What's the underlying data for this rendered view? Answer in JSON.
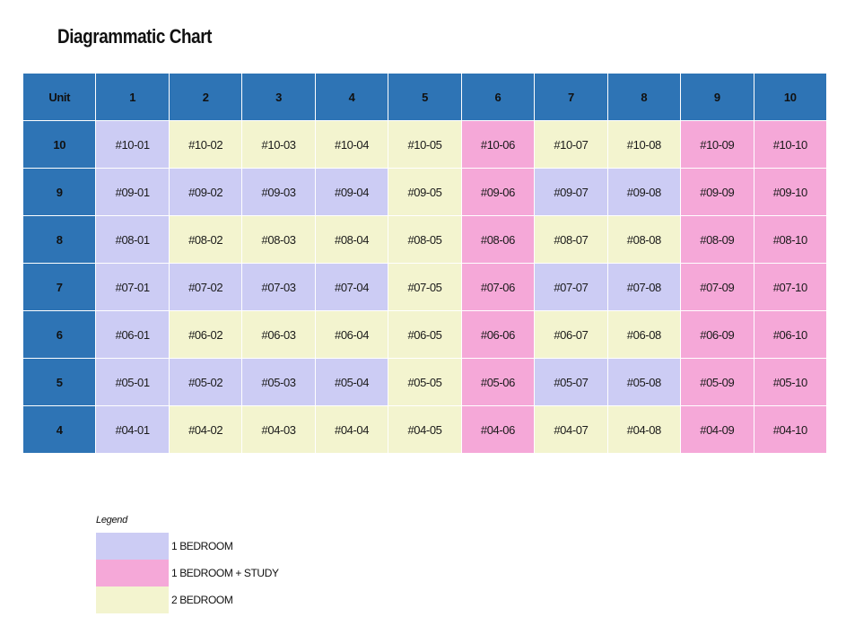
{
  "title": "Diagrammatic Chart",
  "colors": {
    "header": "#2e74b5",
    "1_bedroom": "#ccccf4",
    "1_bedroom_study": "#f5a8d8",
    "2_bedroom": "#f3f4cf"
  },
  "table": {
    "corner_label": "Unit",
    "columns": [
      "1",
      "2",
      "3",
      "4",
      "5",
      "6",
      "7",
      "8",
      "9",
      "10"
    ],
    "rows": [
      {
        "floor": "10",
        "cells": [
          {
            "label": "#10-01",
            "type": "1_bedroom"
          },
          {
            "label": "#10-02",
            "type": "2_bedroom"
          },
          {
            "label": "#10-03",
            "type": "2_bedroom"
          },
          {
            "label": "#10-04",
            "type": "2_bedroom"
          },
          {
            "label": "#10-05",
            "type": "2_bedroom"
          },
          {
            "label": "#10-06",
            "type": "1_bedroom_study"
          },
          {
            "label": "#10-07",
            "type": "2_bedroom"
          },
          {
            "label": "#10-08",
            "type": "2_bedroom"
          },
          {
            "label": "#10-09",
            "type": "1_bedroom_study"
          },
          {
            "label": "#10-10",
            "type": "1_bedroom_study"
          }
        ]
      },
      {
        "floor": "9",
        "cells": [
          {
            "label": "#09-01",
            "type": "1_bedroom"
          },
          {
            "label": "#09-02",
            "type": "1_bedroom"
          },
          {
            "label": "#09-03",
            "type": "1_bedroom"
          },
          {
            "label": "#09-04",
            "type": "1_bedroom"
          },
          {
            "label": "#09-05",
            "type": "2_bedroom"
          },
          {
            "label": "#09-06",
            "type": "1_bedroom_study"
          },
          {
            "label": "#09-07",
            "type": "1_bedroom"
          },
          {
            "label": "#09-08",
            "type": "1_bedroom"
          },
          {
            "label": "#09-09",
            "type": "1_bedroom_study"
          },
          {
            "label": "#09-10",
            "type": "1_bedroom_study"
          }
        ]
      },
      {
        "floor": "8",
        "cells": [
          {
            "label": "#08-01",
            "type": "1_bedroom"
          },
          {
            "label": "#08-02",
            "type": "2_bedroom"
          },
          {
            "label": "#08-03",
            "type": "2_bedroom"
          },
          {
            "label": "#08-04",
            "type": "2_bedroom"
          },
          {
            "label": "#08-05",
            "type": "2_bedroom"
          },
          {
            "label": "#08-06",
            "type": "1_bedroom_study"
          },
          {
            "label": "#08-07",
            "type": "2_bedroom"
          },
          {
            "label": "#08-08",
            "type": "2_bedroom"
          },
          {
            "label": "#08-09",
            "type": "1_bedroom_study"
          },
          {
            "label": "#08-10",
            "type": "1_bedroom_study"
          }
        ]
      },
      {
        "floor": "7",
        "cells": [
          {
            "label": "#07-01",
            "type": "1_bedroom"
          },
          {
            "label": "#07-02",
            "type": "1_bedroom"
          },
          {
            "label": "#07-03",
            "type": "1_bedroom"
          },
          {
            "label": "#07-04",
            "type": "1_bedroom"
          },
          {
            "label": "#07-05",
            "type": "2_bedroom"
          },
          {
            "label": "#07-06",
            "type": "1_bedroom_study"
          },
          {
            "label": "#07-07",
            "type": "1_bedroom"
          },
          {
            "label": "#07-08",
            "type": "1_bedroom"
          },
          {
            "label": "#07-09",
            "type": "1_bedroom_study"
          },
          {
            "label": "#07-10",
            "type": "1_bedroom_study"
          }
        ]
      },
      {
        "floor": "6",
        "cells": [
          {
            "label": "#06-01",
            "type": "1_bedroom"
          },
          {
            "label": "#06-02",
            "type": "2_bedroom"
          },
          {
            "label": "#06-03",
            "type": "2_bedroom"
          },
          {
            "label": "#06-04",
            "type": "2_bedroom"
          },
          {
            "label": "#06-05",
            "type": "2_bedroom"
          },
          {
            "label": "#06-06",
            "type": "1_bedroom_study"
          },
          {
            "label": "#06-07",
            "type": "2_bedroom"
          },
          {
            "label": "#06-08",
            "type": "2_bedroom"
          },
          {
            "label": "#06-09",
            "type": "1_bedroom_study"
          },
          {
            "label": "#06-10",
            "type": "1_bedroom_study"
          }
        ]
      },
      {
        "floor": "5",
        "cells": [
          {
            "label": "#05-01",
            "type": "1_bedroom"
          },
          {
            "label": "#05-02",
            "type": "1_bedroom"
          },
          {
            "label": "#05-03",
            "type": "1_bedroom"
          },
          {
            "label": "#05-04",
            "type": "1_bedroom"
          },
          {
            "label": "#05-05",
            "type": "2_bedroom"
          },
          {
            "label": "#05-06",
            "type": "1_bedroom_study"
          },
          {
            "label": "#05-07",
            "type": "1_bedroom"
          },
          {
            "label": "#05-08",
            "type": "1_bedroom"
          },
          {
            "label": "#05-09",
            "type": "1_bedroom_study"
          },
          {
            "label": "#05-10",
            "type": "1_bedroom_study"
          }
        ]
      },
      {
        "floor": "4",
        "cells": [
          {
            "label": "#04-01",
            "type": "1_bedroom"
          },
          {
            "label": "#04-02",
            "type": "2_bedroom"
          },
          {
            "label": "#04-03",
            "type": "2_bedroom"
          },
          {
            "label": "#04-04",
            "type": "2_bedroom"
          },
          {
            "label": "#04-05",
            "type": "2_bedroom"
          },
          {
            "label": "#04-06",
            "type": "1_bedroom_study"
          },
          {
            "label": "#04-07",
            "type": "2_bedroom"
          },
          {
            "label": "#04-08",
            "type": "2_bedroom"
          },
          {
            "label": "#04-09",
            "type": "1_bedroom_study"
          },
          {
            "label": "#04-10",
            "type": "1_bedroom_study"
          }
        ]
      }
    ]
  },
  "legend": {
    "title": "Legend",
    "items": [
      {
        "label": "1 BEDROOM",
        "type": "1_bedroom"
      },
      {
        "label": "1 BEDROOM + STUDY",
        "type": "1_bedroom_study"
      },
      {
        "label": "2 BEDROOM",
        "type": "2_bedroom"
      }
    ]
  }
}
